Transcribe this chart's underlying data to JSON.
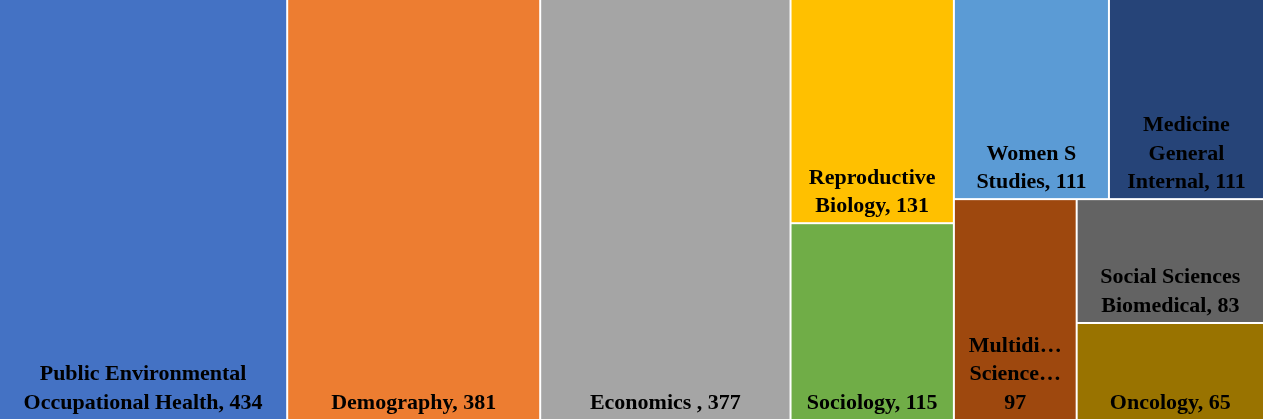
{
  "chart_data": {
    "type": "other",
    "categories": [
      "Public Environmental Occupational Health",
      "Demography",
      "Economics ",
      "Reproductive Biology",
      "Sociology",
      "Women S Studies",
      "Medicine General Internal",
      "Multidi… Science…",
      "Social Sciences Biomedical",
      "Oncology"
    ],
    "values": [
      434,
      381,
      377,
      131,
      115,
      111,
      111,
      97,
      83,
      65
    ],
    "colors": [
      "#4472c4",
      "#ed7d31",
      "#a5a5a5",
      "#ffc000",
      "#70ad47",
      "#5b9bd5",
      "#264478",
      "#9e480e",
      "#636363",
      "#997300"
    ],
    "value_labels": [
      ", 434",
      ", 381",
      ", 377",
      ", 131",
      ", 115",
      ", 111",
      ", 111",
      "97",
      ", 83",
      ", 65"
    ]
  }
}
